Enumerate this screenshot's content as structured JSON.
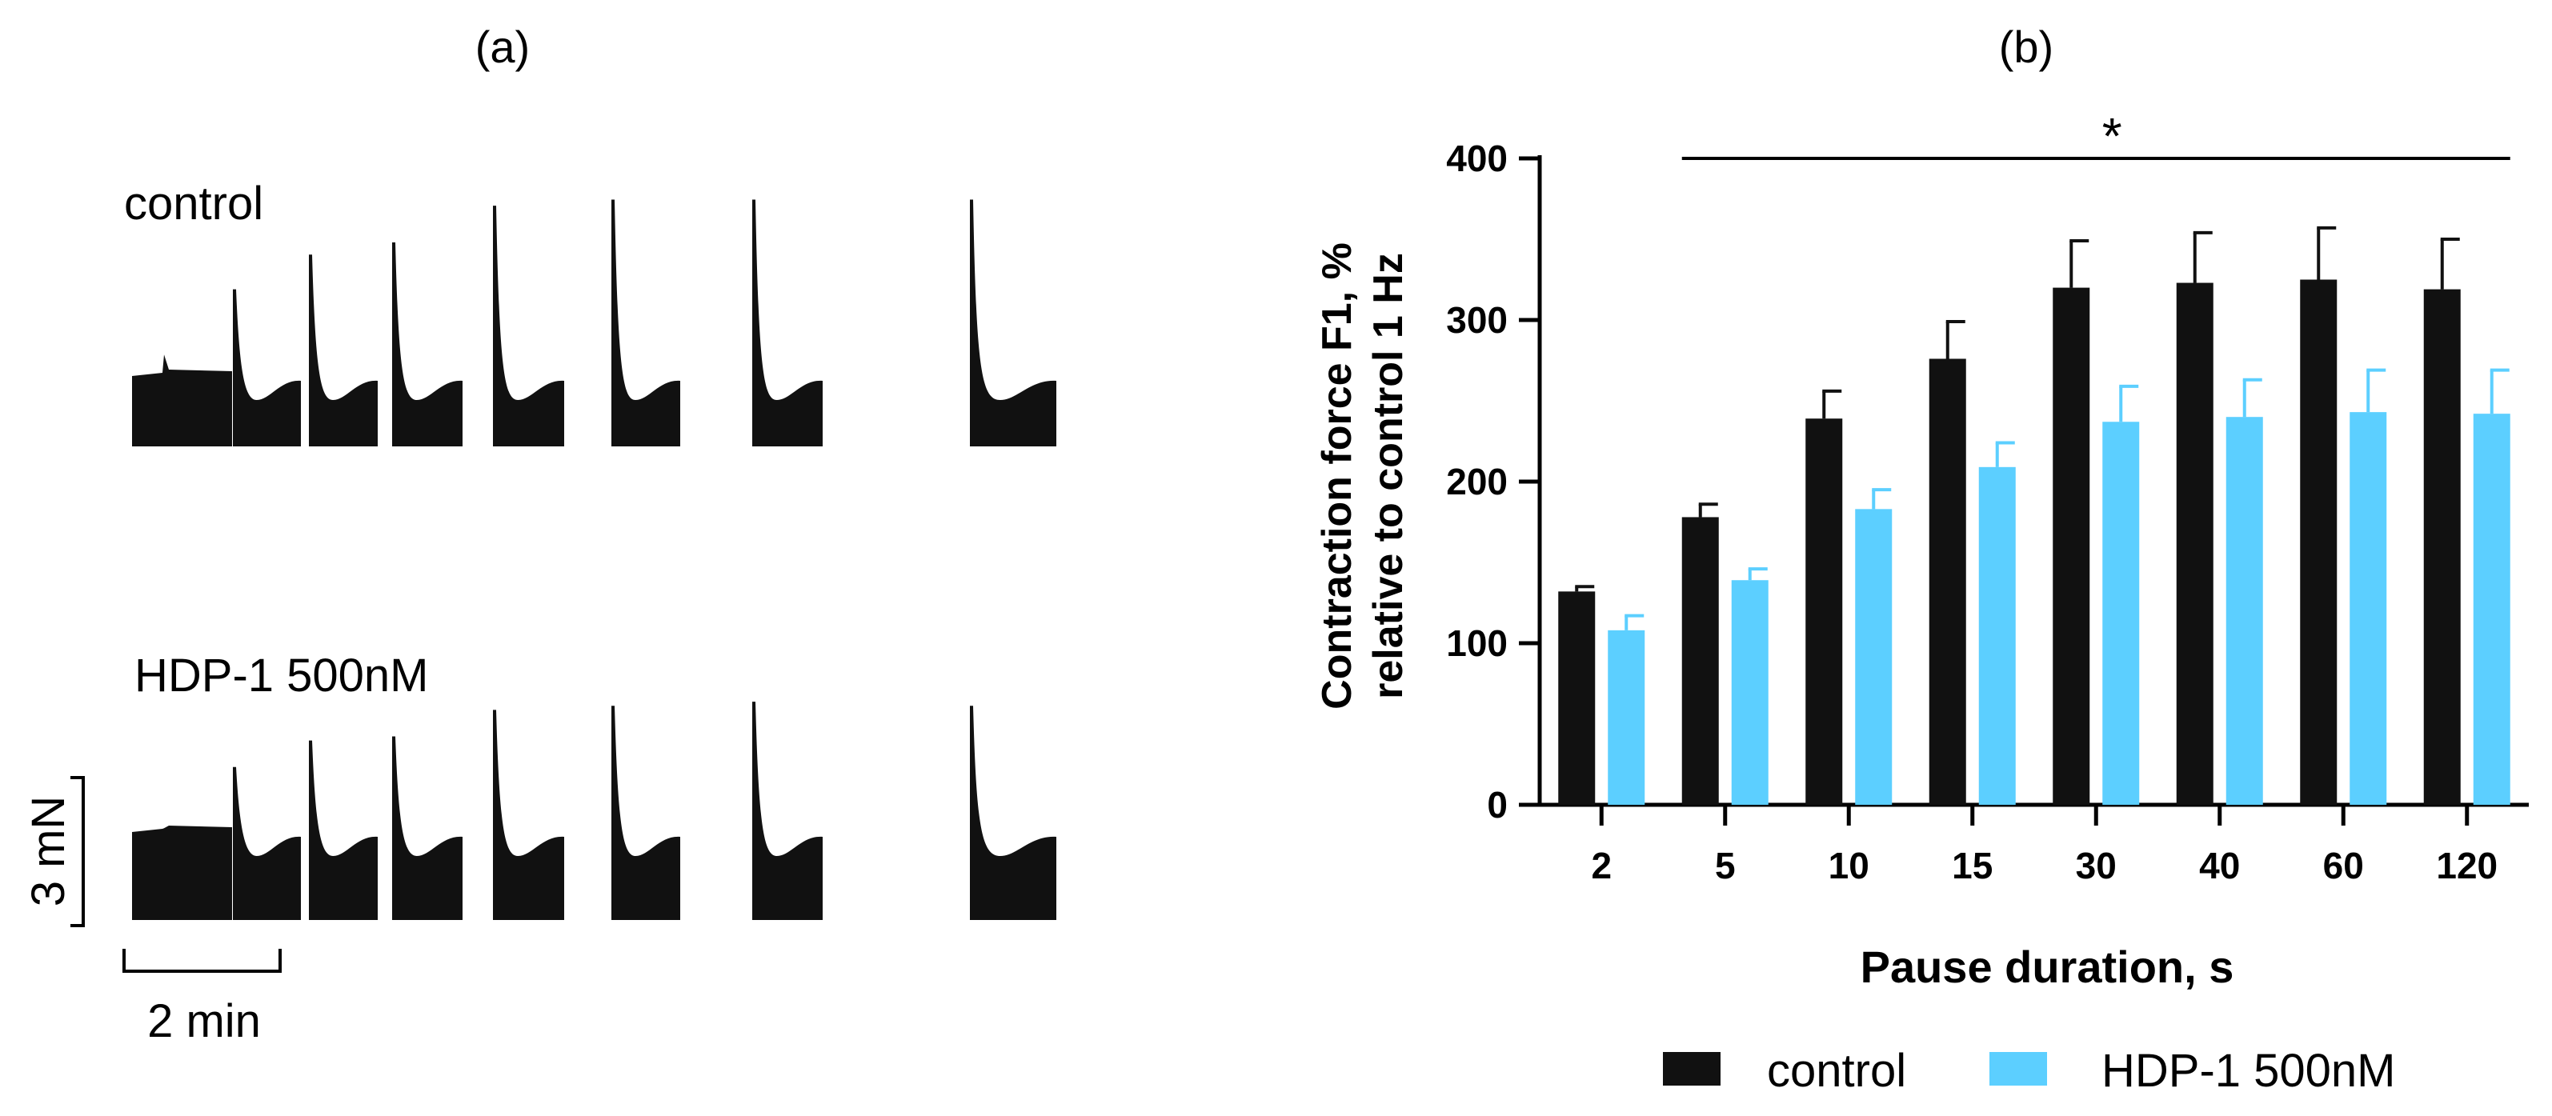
{
  "panel_a": {
    "label": "(a)",
    "rows": [
      {
        "name": "control",
        "peaks": [
          0.45,
          0.77,
          0.94,
          1.0,
          1.18,
          1.21,
          1.21,
          1.21
        ]
      },
      {
        "name": "HDP-1 500nM",
        "peaks": [
          0.45,
          0.75,
          0.88,
          0.9,
          1.03,
          1.05,
          1.07,
          1.05
        ]
      }
    ],
    "scale_bar_y": "3 mN",
    "scale_bar_x": "2 min"
  },
  "panel_b": {
    "label": "(b)"
  },
  "chart_data": {
    "type": "bar",
    "categories": [
      "2",
      "5",
      "10",
      "15",
      "30",
      "40",
      "60",
      "120"
    ],
    "series": [
      {
        "name": "control",
        "color": "#111111",
        "values": [
          132,
          178,
          239,
          276,
          320,
          323,
          325,
          319
        ],
        "errors": [
          3,
          8,
          17,
          23,
          29,
          31,
          32,
          31
        ]
      },
      {
        "name": "HDP-1 500nM",
        "color": "#5ccfff",
        "values": [
          108,
          139,
          183,
          209,
          237,
          240,
          243,
          242
        ],
        "errors": [
          9,
          7,
          12,
          15,
          22,
          23,
          26,
          27
        ]
      }
    ],
    "xlabel": "Pause duration, s",
    "ylabel_line1": "Contraction force F1, %",
    "ylabel_line2": "relative to control 1 Hz",
    "ylim": [
      0,
      400
    ],
    "yticks": [
      0,
      100,
      200,
      300,
      400
    ],
    "significance": {
      "symbol": "*",
      "from": "5",
      "to": "120"
    },
    "legend_position": "bottom-center"
  }
}
